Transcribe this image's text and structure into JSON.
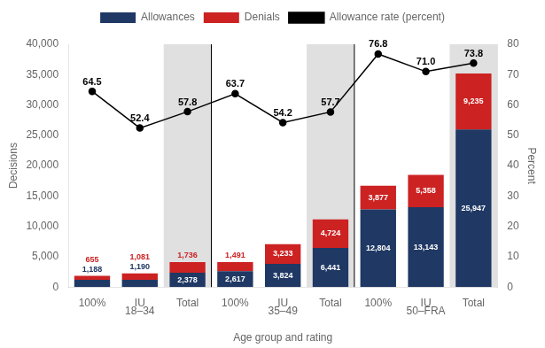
{
  "chart_data": {
    "type": "bar",
    "stacked": true,
    "categories": [
      "100%",
      "IU",
      "Total",
      "100%",
      "IU",
      "Total",
      "100%",
      "IU",
      "Total"
    ],
    "group_labels": [
      "18–34",
      "35–49",
      "50–FRA"
    ],
    "xlabel": "Age group and rating",
    "ylabel": "Decisions",
    "y2label": "Percent",
    "series": [
      {
        "name": "Allowances",
        "color": "#1f3864",
        "values": [
          1188,
          1190,
          2378,
          2617,
          3824,
          6441,
          12804,
          13143,
          25947
        ],
        "value_labels": [
          "1,188",
          "1,190",
          "2,378",
          "2,617",
          "3,824",
          "6,441",
          "12,804",
          "13,143",
          "25,947"
        ]
      },
      {
        "name": "Denials",
        "color": "#cc2222",
        "values": [
          655,
          1081,
          1736,
          1491,
          3233,
          4724,
          3877,
          5358,
          9235
        ],
        "value_labels": [
          "655",
          "1,081",
          "1,736",
          "1,491",
          "3,233",
          "4,724",
          "3,877",
          "5,358",
          "9,235"
        ]
      },
      {
        "name": "Allowance rate (percent)",
        "type": "line",
        "axis": "y2",
        "color": "#000000",
        "marker": "circle",
        "values": [
          64.5,
          52.4,
          57.8,
          63.7,
          54.2,
          57.7,
          76.8,
          71.0,
          73.8
        ],
        "value_labels": [
          "64.5",
          "52.4",
          "57.8",
          "63.7",
          "54.2",
          "57.7",
          "76.8",
          "71.0",
          "73.8"
        ]
      }
    ],
    "ylim": [
      0,
      40000
    ],
    "yticks": [
      0,
      {
        "value": 5000,
        "label": "5,000"
      },
      {
        "value": 10000,
        "label": "10,000"
      },
      {
        "value": 15000,
        "label": "15,000"
      },
      {
        "value": 20000,
        "label": "20,000"
      },
      {
        "value": 25000,
        "label": "25,000"
      },
      {
        "value": 30000,
        "label": "30,000"
      },
      {
        "value": 35000,
        "label": "35,000"
      },
      {
        "value": 40000,
        "label": "40,000"
      }
    ],
    "y2lim": [
      0,
      80
    ],
    "y2ticks": [
      0,
      10,
      20,
      30,
      40,
      50,
      60,
      70,
      80
    ],
    "grid": false,
    "legend": "top",
    "data_labels": true
  }
}
